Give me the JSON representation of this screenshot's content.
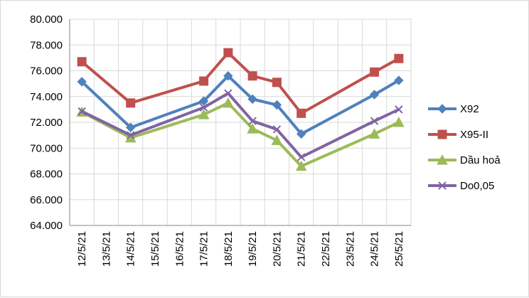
{
  "chart_data": {
    "type": "line",
    "categories": [
      "12/5/21",
      "13/5/21",
      "14/5/21",
      "15/5/21",
      "16/5/21",
      "17/5/21",
      "18/5/21",
      "19/5/21",
      "20/5/21",
      "21/5/21",
      "22/5/21",
      "23/5/21",
      "24/5/21",
      "25/5/21"
    ],
    "y_ticks": [
      "64.000",
      "66.000",
      "68.000",
      "70.000",
      "72.000",
      "74.000",
      "76.000",
      "78.000",
      "80.000"
    ],
    "ylim": [
      64000,
      80000
    ],
    "grid": true,
    "legend_position": "right",
    "series": [
      {
        "name": "X92",
        "color": "#4f81bd",
        "marker": "diamond",
        "points": [
          [
            0,
            75150
          ],
          [
            2,
            71600
          ],
          [
            5,
            73650
          ],
          [
            6,
            75600
          ],
          [
            7,
            73800
          ],
          [
            8,
            73350
          ],
          [
            9,
            71100
          ],
          [
            12,
            74150
          ],
          [
            13,
            75250
          ]
        ]
      },
      {
        "name": "X95-II",
        "color": "#c0504d",
        "marker": "square",
        "points": [
          [
            0,
            76700
          ],
          [
            2,
            73500
          ],
          [
            5,
            75200
          ],
          [
            6,
            77400
          ],
          [
            7,
            75600
          ],
          [
            8,
            75100
          ],
          [
            9,
            72700
          ],
          [
            12,
            75900
          ],
          [
            13,
            76950
          ]
        ]
      },
      {
        "name": "Dầu hoả",
        "color": "#9bbb59",
        "marker": "triangle",
        "points": [
          [
            0,
            72800
          ],
          [
            2,
            70800
          ],
          [
            5,
            72600
          ],
          [
            6,
            73500
          ],
          [
            7,
            71500
          ],
          [
            8,
            70600
          ],
          [
            9,
            68600
          ],
          [
            12,
            71100
          ],
          [
            13,
            72000
          ]
        ]
      },
      {
        "name": "Do0,05",
        "color": "#8064a2",
        "marker": "x",
        "points": [
          [
            0,
            72850
          ],
          [
            2,
            71000
          ],
          [
            5,
            73150
          ],
          [
            6,
            74250
          ],
          [
            7,
            72100
          ],
          [
            8,
            71450
          ],
          [
            9,
            69300
          ],
          [
            12,
            72100
          ],
          [
            13,
            73000
          ]
        ]
      }
    ]
  }
}
